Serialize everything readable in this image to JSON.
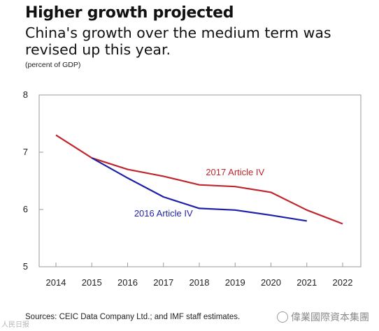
{
  "header": {
    "title": "Higher growth projected",
    "subtitle": "China's growth over the medium term was revised up this year.",
    "unit": "(percent of GDP)"
  },
  "footer": {
    "source": "Sources: CEIC Data Company Ltd.; and IMF staff estimates.",
    "watermark": "偉業國際資本集團",
    "corner_mark": "人民日报"
  },
  "chart_data": {
    "type": "line",
    "title": "Higher growth projected",
    "subtitle": "China's growth over the medium term was revised up this year.",
    "ylabel": "(percent of GDP)",
    "xlabel": "",
    "x": [
      "2014",
      "2015",
      "2016",
      "2017",
      "2018",
      "2019",
      "2020",
      "2021",
      "2022"
    ],
    "ylim": [
      5,
      8
    ],
    "yticks": [
      5,
      6,
      7,
      8
    ],
    "grid": false,
    "series": [
      {
        "name": "2017 Article IV",
        "color": "#c0262d",
        "values": [
          7.3,
          6.9,
          6.7,
          6.58,
          6.43,
          6.4,
          6.3,
          5.99,
          5.75
        ]
      },
      {
        "name": "2016 Article IV",
        "color": "#1f1fa8",
        "values": [
          null,
          6.9,
          6.55,
          6.22,
          6.02,
          5.99,
          5.9,
          5.8,
          null
        ]
      }
    ]
  }
}
